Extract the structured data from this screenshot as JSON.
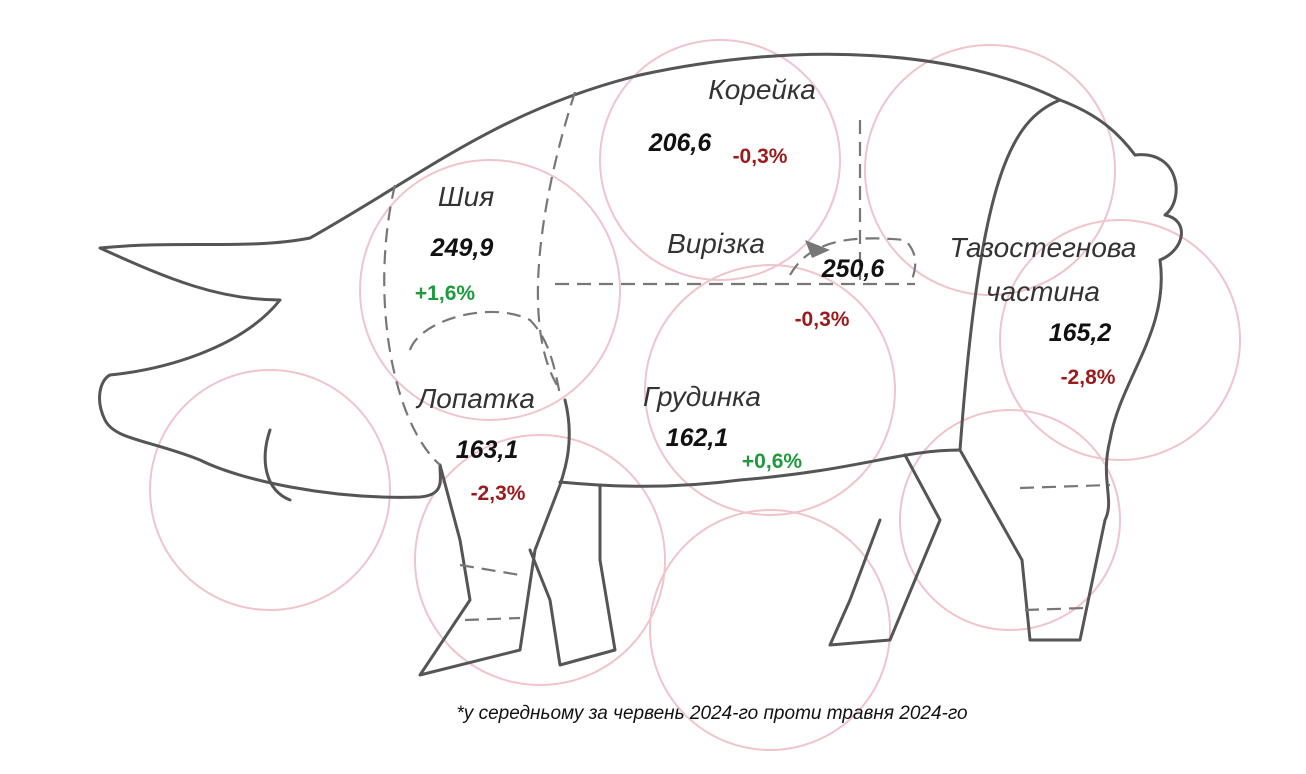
{
  "cuts": [
    {
      "name": [
        "Корейка"
      ],
      "price": "206,6",
      "change": "-0,3%"
    },
    {
      "name": [
        "Шия"
      ],
      "price": "249,9",
      "change": "+1,6%"
    },
    {
      "name": [
        "Вирізка"
      ],
      "price": "250,6",
      "change": "-0,3%"
    },
    {
      "name": [
        "Тазостегнова",
        "частина"
      ],
      "price": "165,2",
      "change": "-2,8%"
    },
    {
      "name": [
        "Лопатка"
      ],
      "price": "163,1",
      "change": "-2,3%"
    },
    {
      "name": [
        "Грудинка"
      ],
      "price": "162,1",
      "change": "+0,6%"
    }
  ],
  "footnote": "*у середньому за червень 2024-го проти травня 2024-го"
}
